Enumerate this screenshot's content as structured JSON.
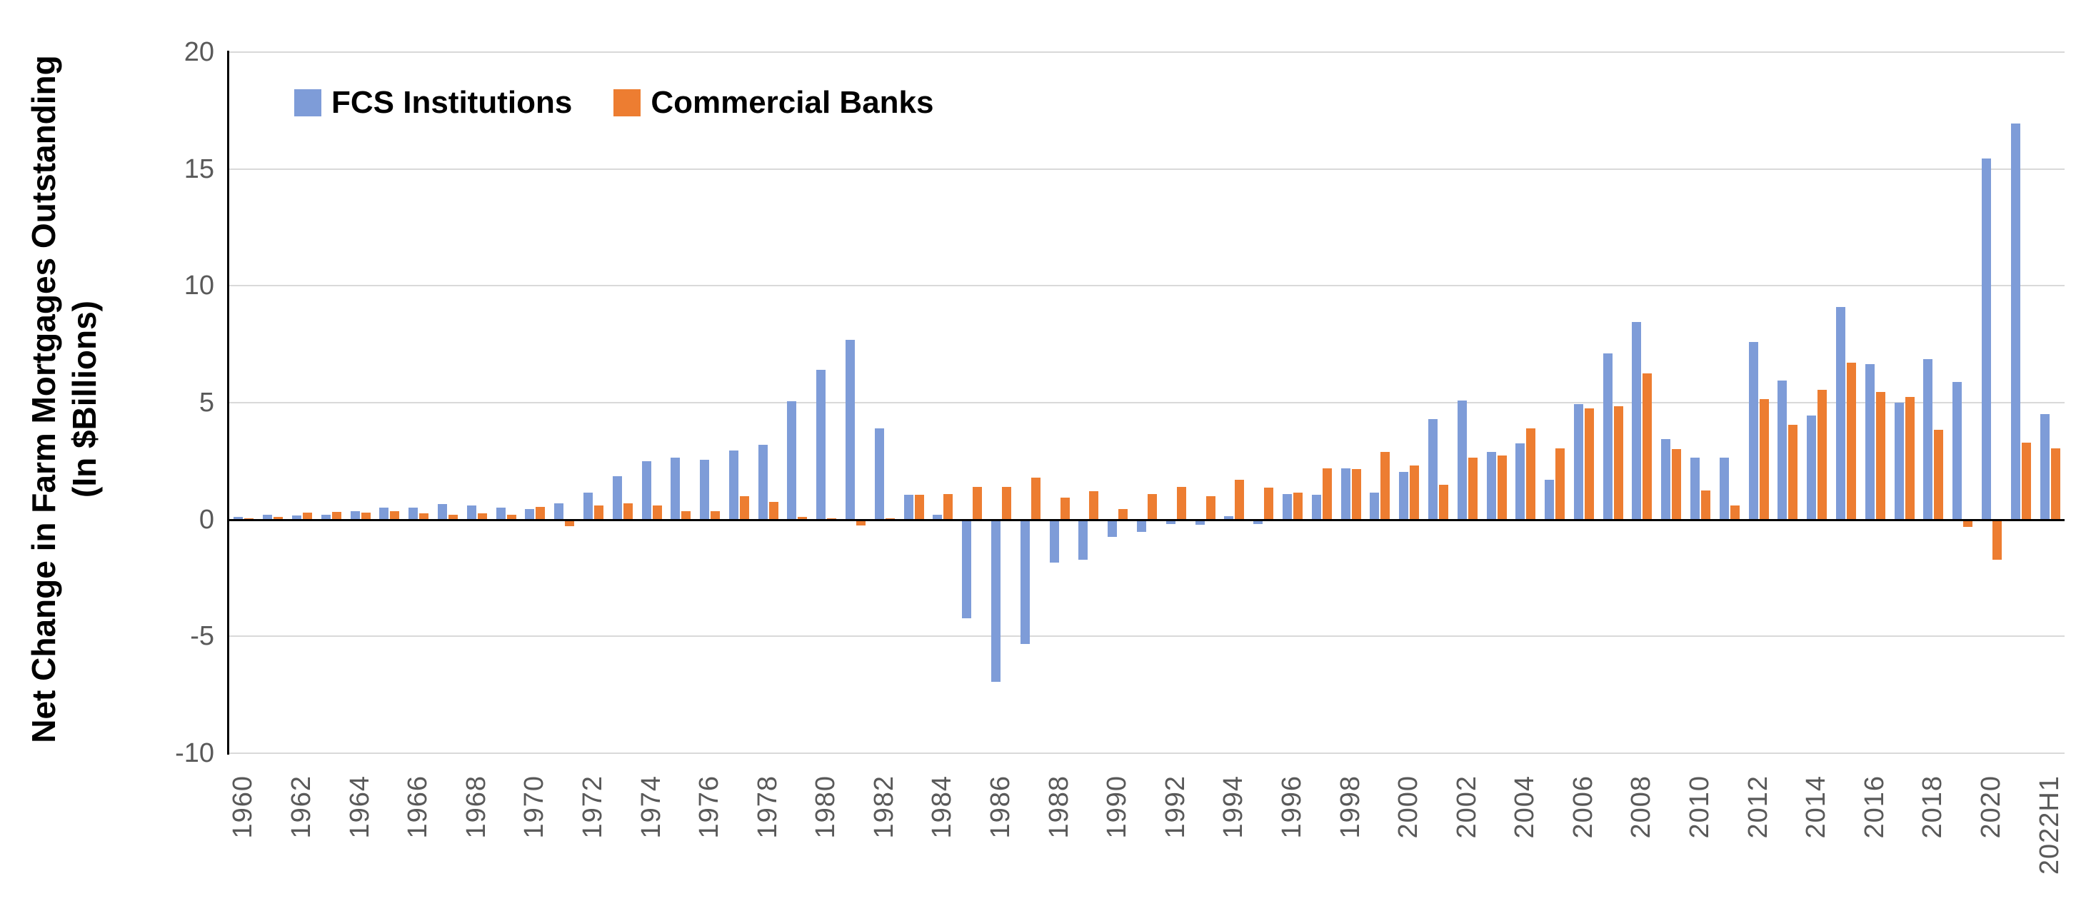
{
  "chart_data": {
    "type": "bar",
    "title": "",
    "ylabel_line1": "Net Change in Farm Mortgages Outstanding",
    "ylabel_line2": "(In $Billions)",
    "categories": [
      "1960",
      "1961",
      "1962",
      "1963",
      "1964",
      "1965",
      "1966",
      "1967",
      "1968",
      "1969",
      "1970",
      "1971",
      "1972",
      "1973",
      "1974",
      "1975",
      "1976",
      "1977",
      "1978",
      "1979",
      "1980",
      "1981",
      "1982",
      "1983",
      "1984",
      "1985",
      "1986",
      "1987",
      "1988",
      "1989",
      "1990",
      "1991",
      "1992",
      "1993",
      "1994",
      "1995",
      "1996",
      "1997",
      "1998",
      "1999",
      "2000",
      "2001",
      "2002",
      "2003",
      "2004",
      "2005",
      "2006",
      "2007",
      "2008",
      "2009",
      "2010",
      "2011",
      "2012",
      "2013",
      "2014",
      "2015",
      "2016",
      "2017",
      "2018",
      "2019",
      "2020",
      "2021",
      "2022H1"
    ],
    "series": [
      {
        "name": "FCS Institutions",
        "color": "#7E9CD8",
        "values": [
          0.12,
          0.2,
          0.16,
          0.2,
          0.35,
          0.5,
          0.5,
          0.65,
          0.6,
          0.5,
          0.45,
          0.7,
          1.15,
          1.85,
          2.5,
          2.65,
          2.55,
          2.95,
          3.2,
          5.05,
          6.4,
          7.7,
          3.9,
          1.05,
          0.2,
          -4.2,
          -6.9,
          -5.3,
          -1.8,
          -1.7,
          -0.7,
          -0.5,
          -0.15,
          -0.2,
          0.13,
          -0.15,
          1.1,
          1.05,
          2.2,
          1.15,
          2.05,
          4.3,
          5.1,
          2.9,
          3.25,
          1.7,
          4.95,
          7.1,
          8.45,
          3.45,
          2.65,
          2.65,
          7.6,
          5.95,
          4.45,
          9.1,
          6.65,
          5.0,
          6.85,
          5.9,
          15.45,
          16.95,
          4.5
        ]
      },
      {
        "name": "Commercial Banks",
        "color": "#ED7D31",
        "values": [
          0.05,
          0.1,
          0.3,
          0.33,
          0.3,
          0.35,
          0.25,
          0.2,
          0.27,
          0.2,
          0.55,
          -0.25,
          0.6,
          0.7,
          0.6,
          0.35,
          0.35,
          1.0,
          0.75,
          0.12,
          0.04,
          -0.22,
          0.05,
          1.05,
          1.1,
          1.4,
          1.4,
          1.8,
          0.95,
          1.2,
          0.45,
          1.1,
          1.4,
          1.0,
          1.7,
          1.35,
          1.15,
          2.2,
          2.15,
          2.9,
          2.3,
          1.5,
          2.65,
          2.75,
          3.9,
          3.05,
          4.75,
          4.85,
          6.25,
          3.0,
          1.25,
          0.6,
          5.15,
          4.05,
          5.55,
          6.7,
          5.45,
          5.25,
          3.85,
          -0.3,
          -1.7,
          3.3,
          3.05
        ]
      }
    ],
    "ylim": [
      -10,
      20
    ],
    "ytick_interval": 5,
    "ytick_labels": [
      "20",
      "15",
      "10",
      "5",
      "0",
      "-5",
      "-10"
    ],
    "ytick_values": [
      20,
      15,
      10,
      5,
      0,
      -5,
      -10
    ],
    "xtick_every": 2,
    "grid": true,
    "legend_position": "top-inside",
    "colors": {
      "gridline": "#d9d9d9",
      "axis": "#000000",
      "tick_text": "#595959"
    }
  }
}
